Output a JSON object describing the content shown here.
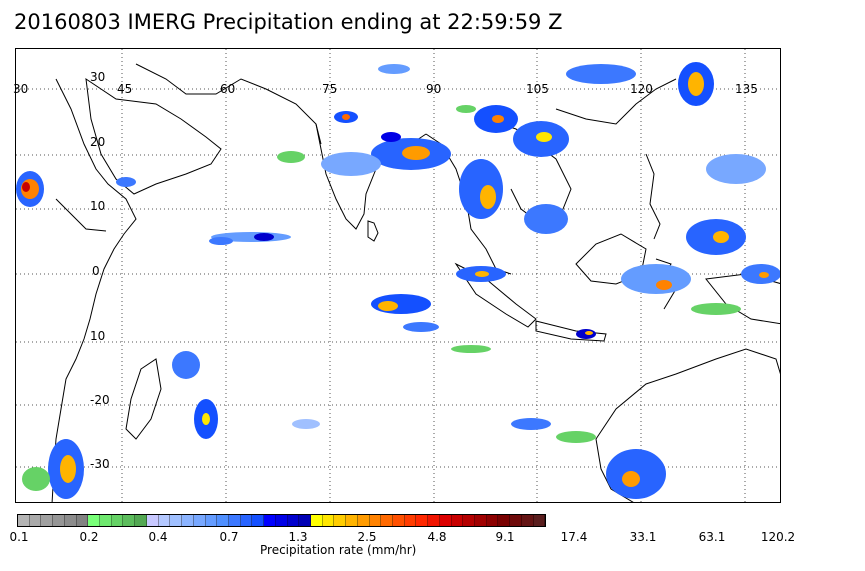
{
  "title": "20160803 IMERG Precipitation ending at 22:59:59 Z",
  "lon_labels": [
    "30",
    "45",
    "60",
    "75",
    "90",
    "105",
    "120",
    "135"
  ],
  "lon_labels_top": [
    "30"
  ],
  "lat_labels": [
    "20",
    "10",
    "0",
    "10",
    "-20",
    "-30"
  ],
  "colorbar": {
    "colors": [
      "#b4b4b4",
      "#aaaaaa",
      "#a0a0a0",
      "#969696",
      "#8c8c8c",
      "#828282",
      "#78ff78",
      "#6fe86f",
      "#66d266",
      "#5dbd5d",
      "#53a853",
      "#c8c8ff",
      "#b4c8ff",
      "#a0c0ff",
      "#8cb4ff",
      "#78a8ff",
      "#649cff",
      "#5090ff",
      "#3c78ff",
      "#2864ff",
      "#1450ff",
      "#0000ff",
      "#0000e6",
      "#0000cd",
      "#0000b4",
      "#ffff00",
      "#ffe600",
      "#ffcd00",
      "#ffb400",
      "#ff9b00",
      "#ff8200",
      "#ff6900",
      "#ff5000",
      "#ff3c00",
      "#ff2800",
      "#f01400",
      "#dc0000",
      "#c80000",
      "#b40000",
      "#a00000",
      "#8c0000",
      "#780000",
      "#6e0a0a",
      "#641414",
      "#5a1e1e"
    ],
    "labels": [
      "0.1",
      "0.2",
      "0.4",
      "0.7",
      "1.3",
      "2.5",
      "4.8",
      "9.1",
      "17.4",
      "33.1",
      "63.1",
      "120.2"
    ]
  },
  "unit_label": "Precipitation rate (mm/hr)"
}
